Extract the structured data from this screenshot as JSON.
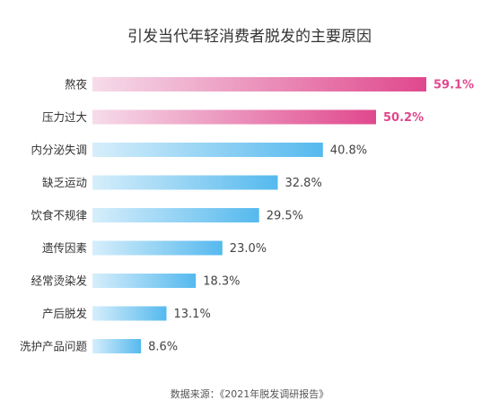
{
  "chart_data": {
    "type": "bar",
    "orientation": "horizontal",
    "title": "引发当代年轻消费者脱发的主要原因",
    "categories": [
      "熬夜",
      "压力过大",
      "内分泌失调",
      "缺乏运动",
      "饮食不规律",
      "遗传因素",
      "经常烫染发",
      "产后脱发",
      "洗护产品问题"
    ],
    "values": [
      59.1,
      50.2,
      40.8,
      32.8,
      29.5,
      23.0,
      18.3,
      13.1,
      8.6
    ],
    "value_labels": [
      "59.1%",
      "50.2%",
      "40.8%",
      "32.8%",
      "29.5%",
      "23.0%",
      "18.3%",
      "13.1%",
      "8.6%"
    ],
    "highlight_count": 2,
    "xlim": [
      0,
      59.1
    ],
    "grid": false,
    "legend": "none",
    "source": "数据来源：《2021年脱发调研报告》",
    "colors": {
      "highlight_start": "#f6dcea",
      "highlight_end": "#e0488d",
      "highlight_label": "#e0488d",
      "normal_start": "#d6eefb",
      "normal_end": "#55b9ee",
      "normal_label": "#444444",
      "category_text": "#333333",
      "title_text": "#333333",
      "source_text": "#555555"
    }
  }
}
